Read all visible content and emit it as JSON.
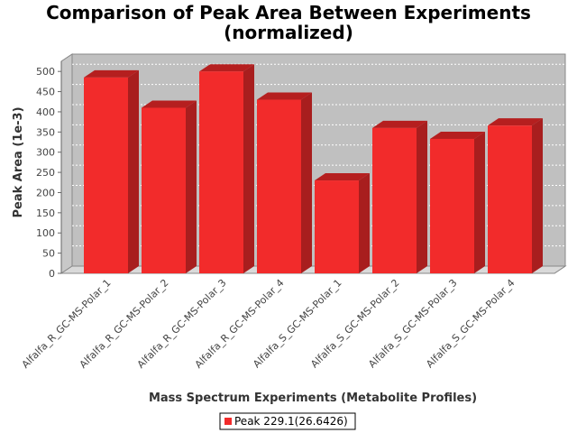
{
  "chart_data": {
    "type": "bar",
    "title": "Comparison of Peak Area Between Experiments",
    "subtitle": "(normalized)",
    "xlabel": "Mass Spectrum Experiments (Metabolite Profiles)",
    "ylabel": "Peak Area (1e-3)",
    "ylim": [
      0,
      525
    ],
    "yticks": [
      0,
      50,
      100,
      150,
      200,
      250,
      300,
      350,
      400,
      450,
      500
    ],
    "grid": true,
    "legend_position": "bottom",
    "categories": [
      "Alfalfa_R_GC-MS-Polar_1",
      "Alfalfa_R_GC-MS-Polar_2",
      "Alfalfa_R_GC-MS-Polar_3",
      "Alfalfa_R_GC-MS-Polar_4",
      "Alfalfa_S_GC-MS-Polar_1",
      "Alfalfa_S_GC-MS-Polar_2",
      "Alfalfa_S_GC-MS-Polar_3",
      "Alfalfa_S_GC-MS-Polar_4"
    ],
    "series": [
      {
        "name": "Peak 229.1(26.6426)",
        "color": "#f22b2b",
        "values": [
          485,
          410,
          500,
          430,
          230,
          360,
          333,
          366
        ]
      }
    ]
  },
  "colors": {
    "plot_background": "#c0c0c0",
    "floor": "#d9d9d9",
    "bar_front": "#f22b2b",
    "bar_top": "#b51f1f",
    "bar_side": "#a81e1e"
  }
}
